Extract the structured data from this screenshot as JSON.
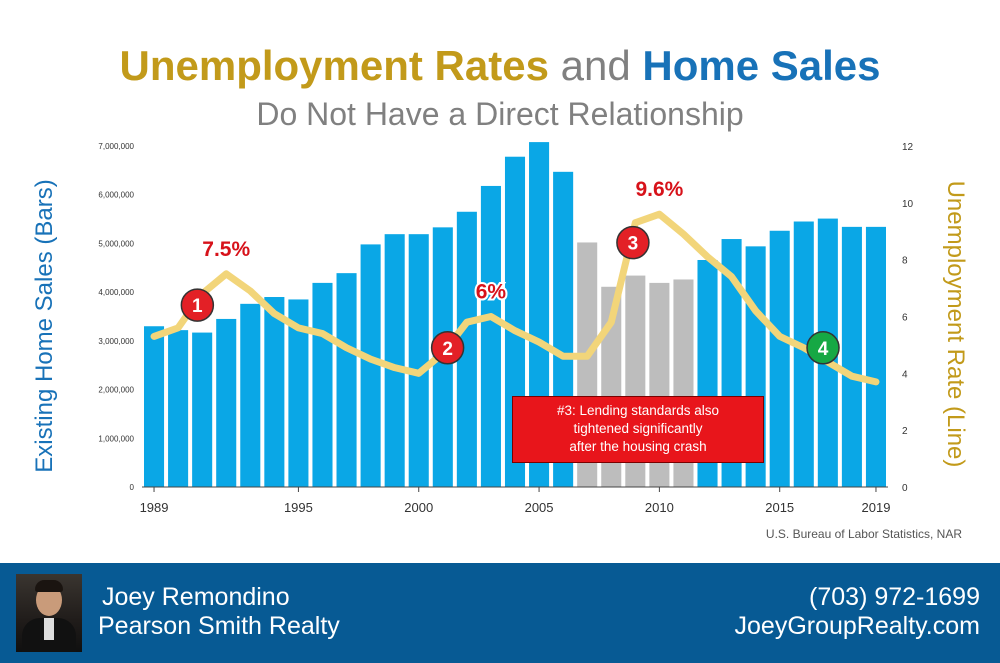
{
  "chart_data": {
    "type": "bar",
    "title_parts": [
      "Unemployment Rates",
      "and",
      "Home Sales"
    ],
    "subtitle": "Do Not Have a Direct Relationship",
    "ylabel_left": "Existing Home Sales (Bars)",
    "ylabel_right": "Unemployment Rate (Line)",
    "x_tick_labels": [
      "1989",
      "1995",
      "2000",
      "2005",
      "2010",
      "2015",
      "2019"
    ],
    "x_tick_years": [
      1989,
      1995,
      2000,
      2005,
      2010,
      2015,
      2019
    ],
    "y_left_ticks": [
      "0",
      "1,000,000",
      "2,000,000",
      "3,000,000",
      "4,000,000",
      "5,000,000",
      "6,000,000",
      "7,000,000"
    ],
    "y_left_lim": [
      0,
      7000000
    ],
    "y_right_ticks": [
      "0",
      "2",
      "4",
      "6",
      "8",
      "10",
      "12"
    ],
    "y_right_lim": [
      0,
      12
    ],
    "years": [
      1989,
      1990,
      1991,
      1992,
      1993,
      1994,
      1995,
      1996,
      1997,
      1998,
      1999,
      2000,
      2001,
      2002,
      2003,
      2004,
      2005,
      2006,
      2007,
      2008,
      2009,
      2010,
      2011,
      2012,
      2013,
      2014,
      2015,
      2016,
      2017,
      2018,
      2019
    ],
    "series": [
      {
        "name": "Existing Home Sales",
        "axis": "left",
        "values": [
          3300000,
          3220000,
          3170000,
          3450000,
          3760000,
          3900000,
          3850000,
          4190000,
          4390000,
          4980000,
          5190000,
          5190000,
          5330000,
          5650000,
          6180000,
          6780000,
          7080000,
          6470000,
          5020000,
          4110000,
          4340000,
          4190000,
          4260000,
          4660000,
          5090000,
          4940000,
          5260000,
          5450000,
          5510000,
          5340000,
          5340000
        ],
        "colors": [
          "#0aa7e6",
          "#0aa7e6",
          "#0aa7e6",
          "#0aa7e6",
          "#0aa7e6",
          "#0aa7e6",
          "#0aa7e6",
          "#0aa7e6",
          "#0aa7e6",
          "#0aa7e6",
          "#0aa7e6",
          "#0aa7e6",
          "#0aa7e6",
          "#0aa7e6",
          "#0aa7e6",
          "#0aa7e6",
          "#0aa7e6",
          "#0aa7e6",
          "#bdbdbd",
          "#bdbdbd",
          "#bdbdbd",
          "#bdbdbd",
          "#bdbdbd",
          "#0aa7e6",
          "#0aa7e6",
          "#0aa7e6",
          "#0aa7e6",
          "#0aa7e6",
          "#0aa7e6",
          "#0aa7e6",
          "#0aa7e6"
        ]
      },
      {
        "name": "Unemployment Rate",
        "axis": "right",
        "type": "line",
        "color": "#f2d57a",
        "values": [
          5.3,
          5.6,
          6.8,
          7.5,
          6.9,
          6.1,
          5.6,
          5.4,
          4.9,
          4.5,
          4.2,
          4.0,
          4.7,
          5.8,
          6.0,
          5.5,
          5.1,
          4.6,
          4.6,
          5.8,
          9.3,
          9.6,
          8.9,
          8.1,
          7.4,
          6.2,
          5.3,
          4.9,
          4.4,
          3.9,
          3.7
        ]
      }
    ],
    "callouts": [
      {
        "text": "7.5%",
        "year": 1992,
        "value": 7.5
      },
      {
        "text": "6%",
        "year": 2003,
        "value": 6.0
      },
      {
        "text": "9.6%",
        "year": 2010,
        "value": 9.6
      }
    ],
    "markers": [
      {
        "label": "1",
        "year": 1990.8,
        "value": 6.4,
        "color": "#e32026"
      },
      {
        "label": "2",
        "year": 2001.2,
        "value": 4.9,
        "color": "#e32026"
      },
      {
        "label": "3",
        "year": 2008.9,
        "value": 8.6,
        "color": "#e32026"
      },
      {
        "label": "4",
        "year": 2016.8,
        "value": 4.9,
        "color": "#16a844"
      }
    ],
    "annotation": {
      "line1": "#3: Lending standards also",
      "line2": "tightened significantly",
      "line3": "after the housing crash"
    },
    "source": "U.S. Bureau of Labor Statistics, NAR"
  },
  "footer": {
    "name": "Joey Remondino",
    "company": "Pearson Smith Realty",
    "phone": "(703) 972-1699",
    "website": "JoeyGroupRealty.com"
  },
  "colors": {
    "title_gold": "#c29a1a",
    "title_blue": "#1872b8",
    "footer_bg": "#075a94"
  }
}
